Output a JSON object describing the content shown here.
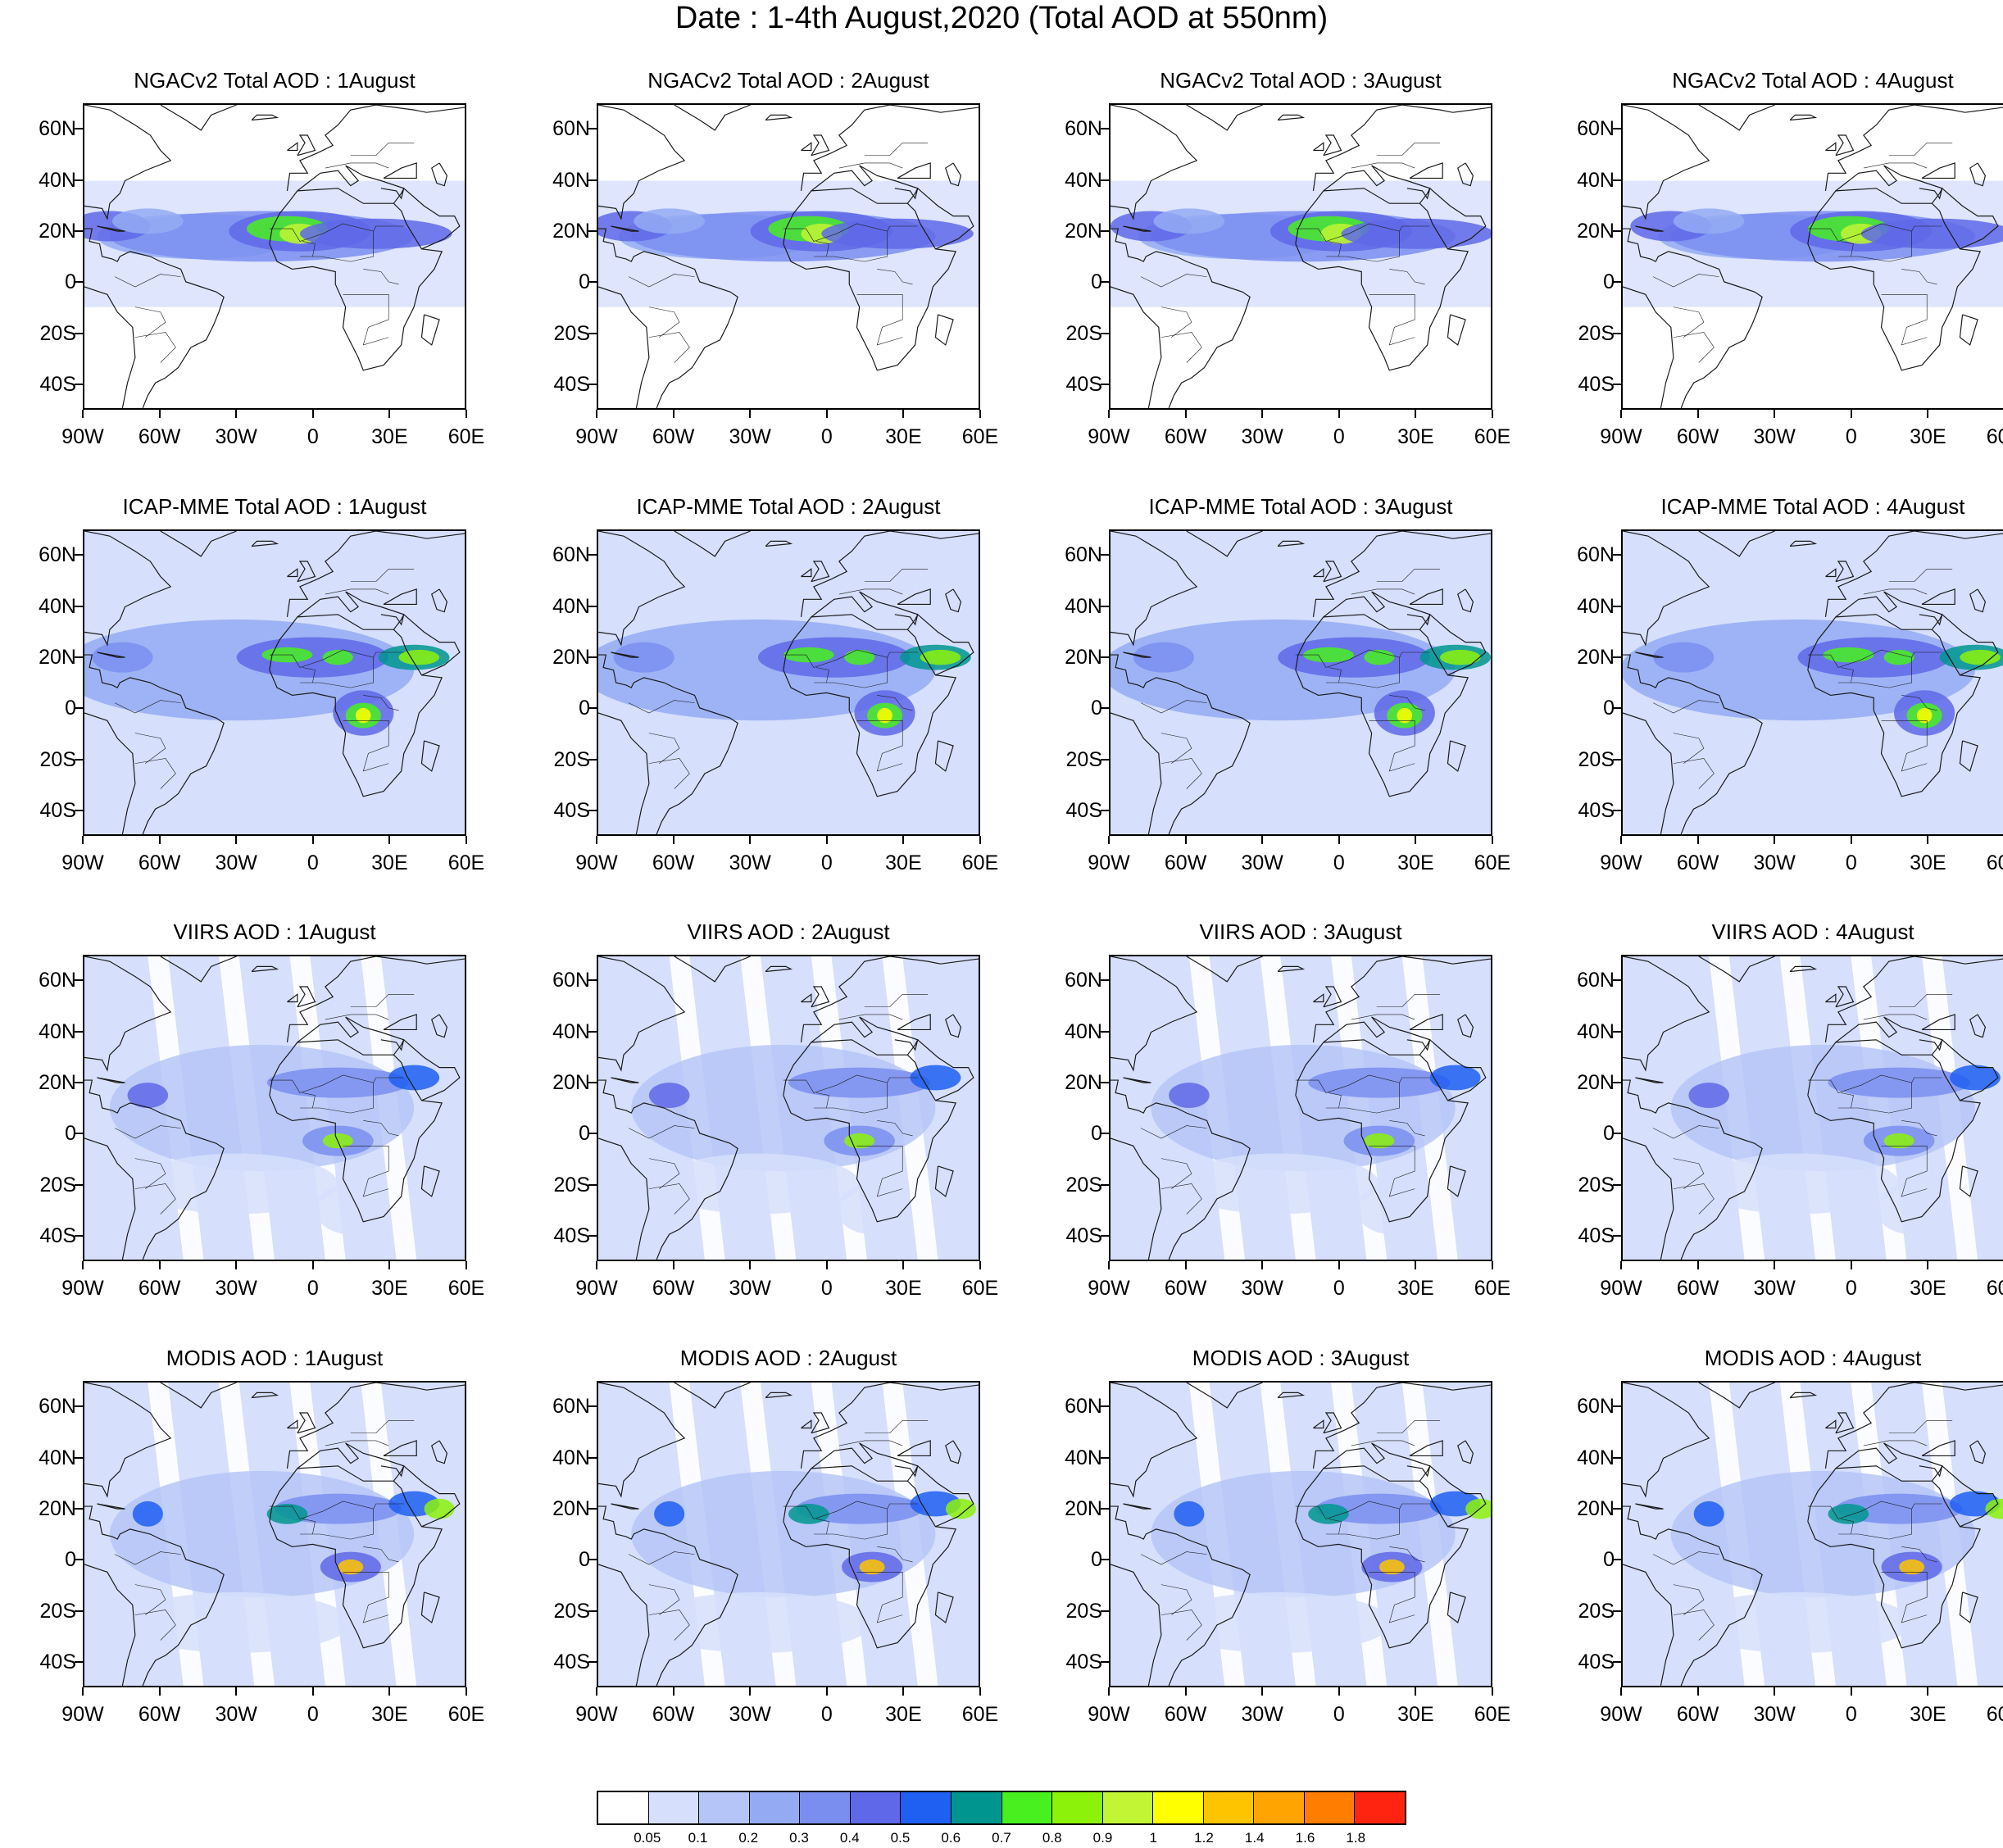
{
  "title": "Date : 1-4th August,2020 (Total AOD at 550nm)",
  "lat_labels": [
    "60N",
    "40N",
    "20N",
    "0",
    "20S",
    "40S"
  ],
  "lon_labels": [
    "90W",
    "60W",
    "30W",
    "0",
    "30E",
    "60E"
  ],
  "lat_values": [
    60,
    40,
    20,
    0,
    -20,
    -40
  ],
  "lon_values": [
    -90,
    -60,
    -30,
    0,
    30,
    60
  ],
  "extent": {
    "lon_min": -90,
    "lon_max": 60,
    "lat_min": -50,
    "lat_max": 70
  },
  "rows": [
    {
      "product": "NGACv2",
      "titles": [
        "NGACv2 Total AOD : 1August",
        "NGACv2 Total AOD : 2August",
        "NGACv2 Total AOD : 3August",
        "NGACv2 Total AOD : 4August"
      ]
    },
    {
      "product": "ICAP-MME",
      "titles": [
        "ICAP-MME Total AOD : 1August",
        "ICAP-MME Total AOD : 2August",
        "ICAP-MME Total AOD : 3August",
        "ICAP-MME Total AOD : 4August"
      ]
    },
    {
      "product": "VIIRS",
      "titles": [
        "VIIRS AOD : 1August",
        "VIIRS AOD : 2August",
        "VIIRS AOD : 3August",
        "VIIRS AOD : 4August"
      ]
    },
    {
      "product": "MODIS",
      "titles": [
        "MODIS AOD : 1August",
        "MODIS AOD : 2August",
        "MODIS AOD : 3August",
        "MODIS AOD : 4August"
      ]
    }
  ],
  "colorbar": {
    "labels": [
      "0.05",
      "0.1",
      "0.2",
      "0.3",
      "0.4",
      "0.5",
      "0.6",
      "0.7",
      "0.8",
      "0.9",
      "1",
      "1.2",
      "1.4",
      "1.6",
      "1.8"
    ],
    "colors": [
      "#ffffff",
      "#d6dffb",
      "#b5c5f7",
      "#94abf3",
      "#7a8ef0",
      "#5f68e8",
      "#1f5ff2",
      "#00968f",
      "#48f020",
      "#8cf20a",
      "#c2f534",
      "#ffff00",
      "#ffc400",
      "#ffa400",
      "#ff7d00",
      "#ff2410"
    ]
  },
  "map_colors": {
    "land_outline": "#1a1a1a",
    "background_haze": "#d6dffb"
  }
}
